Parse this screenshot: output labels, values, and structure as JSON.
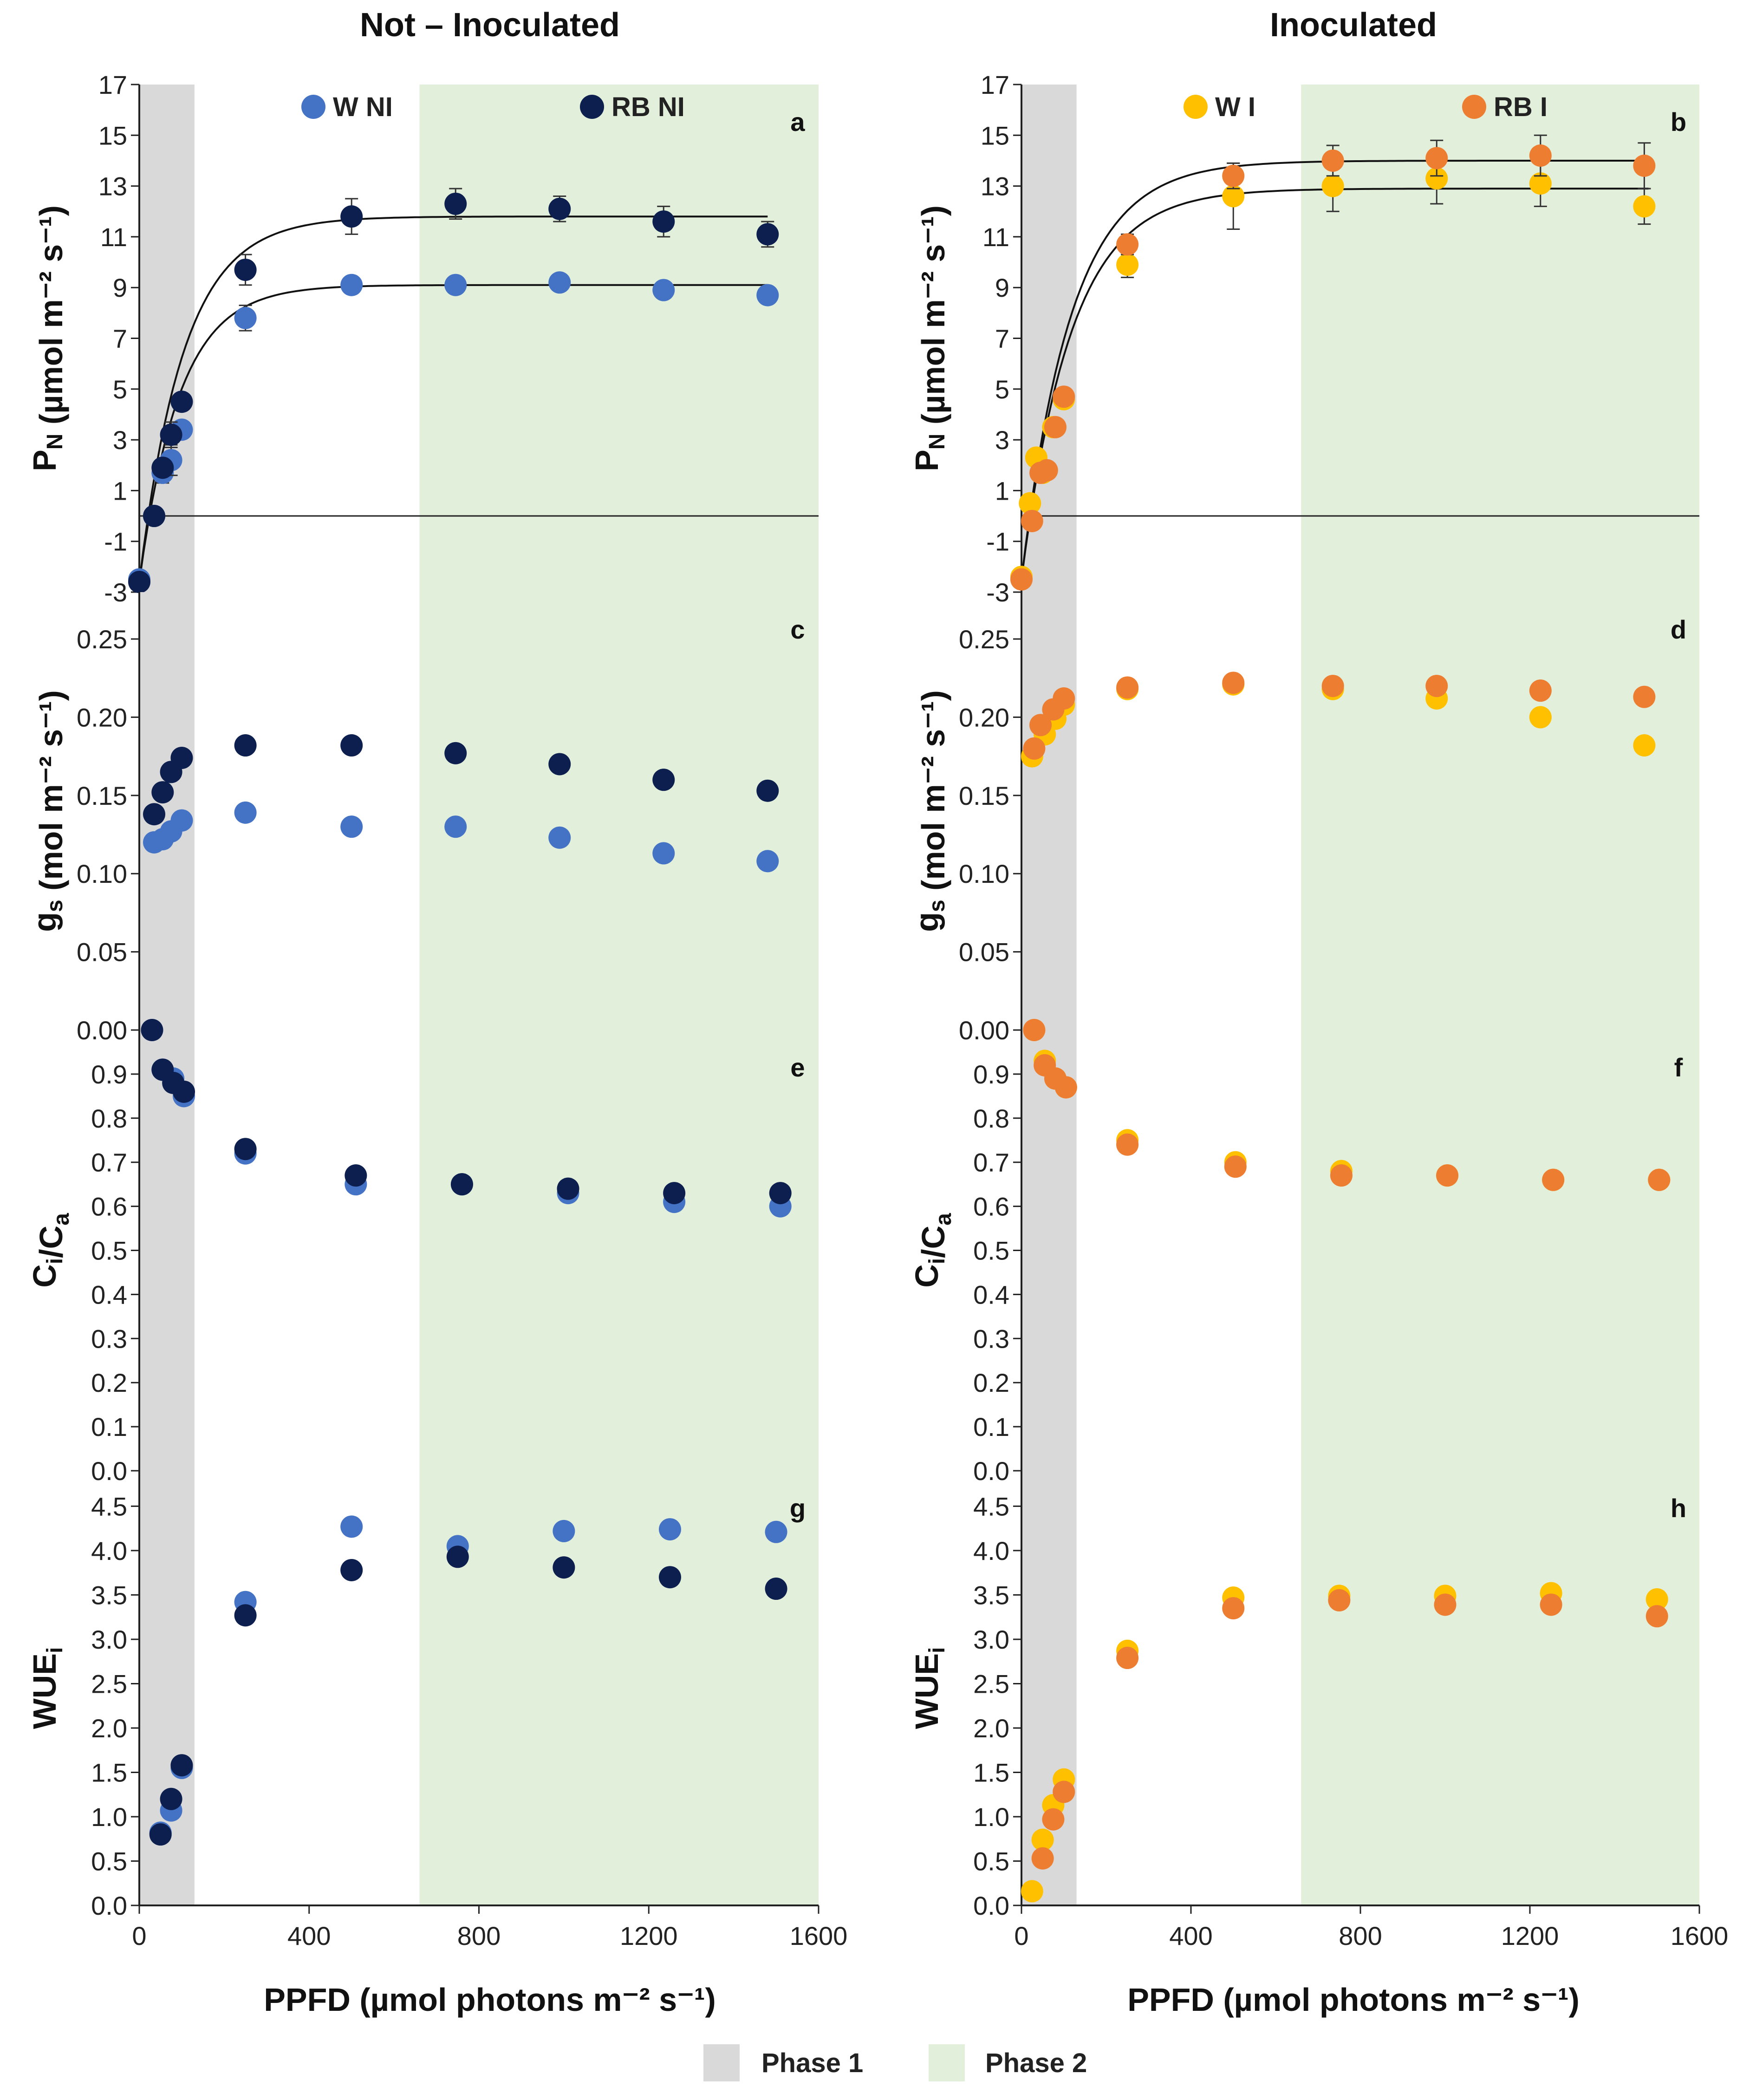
{
  "figure": {
    "column_titles": [
      "Not – Inoculated",
      "Inoculated"
    ],
    "x_axis_title": "PPFD (µmol photons m⁻² s⁻¹)",
    "x_ticks": [
      "0",
      "400",
      "800",
      "1200",
      "1600"
    ],
    "phase_legend": [
      {
        "label": "Phase 1",
        "color": "#d9d9d9"
      },
      {
        "label": "Phase 2",
        "color": "#e2efda"
      }
    ]
  },
  "chart_data": [
    {
      "type": "scatter",
      "panel": "a",
      "column": 0,
      "row": 0,
      "ylabel": "Pₙ (µmol m⁻² s⁻¹)",
      "ylim": [
        -3,
        17
      ],
      "yticks": [
        "-3",
        "-1",
        "1",
        "3",
        "5",
        "7",
        "9",
        "11",
        "13",
        "15",
        "17"
      ],
      "xlim": [
        0,
        1600
      ],
      "phase1": [
        0,
        130
      ],
      "phase2": [
        660,
        1600
      ],
      "legend": true,
      "series": [
        {
          "name": "W NI",
          "color": "#4472c4",
          "x": [
            0,
            35,
            55,
            75,
            100,
            250,
            500,
            745,
            990,
            1235,
            1480
          ],
          "y": [
            -2.5,
            0.0,
            1.7,
            2.2,
            3.4,
            7.8,
            9.1,
            9.1,
            9.2,
            8.9,
            8.7
          ],
          "err": [
            0.2,
            0.2,
            0.4,
            0.6,
            0.3,
            0.5,
            0.3,
            0.3,
            0.3,
            0.3,
            0.3
          ],
          "curve": {
            "amax": 9.1,
            "rd": -2.6,
            "k": 0.0105
          }
        },
        {
          "name": "RB NI",
          "color": "#0d1f4f",
          "x": [
            0,
            35,
            55,
            75,
            100,
            250,
            500,
            745,
            990,
            1235,
            1480
          ],
          "y": [
            -2.6,
            0.0,
            1.9,
            3.2,
            4.5,
            9.7,
            11.8,
            12.3,
            12.1,
            11.6,
            11.1
          ],
          "err": [
            0.2,
            0.2,
            0.3,
            0.5,
            0.3,
            0.6,
            0.7,
            0.6,
            0.5,
            0.6,
            0.5
          ],
          "curve": {
            "amax": 11.8,
            "rd": -2.6,
            "k": 0.0095
          }
        }
      ]
    },
    {
      "type": "scatter",
      "panel": "b",
      "column": 1,
      "row": 0,
      "ylabel": "Pₙ (µmol m⁻² s⁻¹)",
      "ylim": [
        -3,
        17
      ],
      "yticks": [
        "-3",
        "-1",
        "1",
        "3",
        "5",
        "7",
        "9",
        "11",
        "13",
        "15",
        "17"
      ],
      "xlim": [
        0,
        1600
      ],
      "phase1": [
        0,
        130
      ],
      "phase2": [
        660,
        1600
      ],
      "legend": true,
      "series": [
        {
          "name": "W I",
          "color": "#ffc000",
          "x": [
            0,
            20,
            35,
            50,
            75,
            100,
            250,
            500,
            735,
            980,
            1225,
            1470
          ],
          "y": [
            -2.4,
            0.5,
            2.3,
            1.7,
            3.5,
            4.6,
            9.9,
            12.6,
            13.0,
            13.3,
            13.1,
            12.2
          ],
          "err": [
            0.2,
            0.3,
            0.3,
            0.3,
            0.3,
            0.3,
            0.5,
            1.3,
            1.0,
            1.0,
            0.9,
            0.7
          ],
          "curve": {
            "amax": 12.9,
            "rd": -2.5,
            "k": 0.0085
          }
        },
        {
          "name": "RB I",
          "color": "#ed7d31",
          "x": [
            0,
            25,
            45,
            60,
            80,
            100,
            250,
            500,
            735,
            980,
            1225,
            1470
          ],
          "y": [
            -2.5,
            -0.2,
            1.7,
            1.8,
            3.5,
            4.7,
            10.7,
            13.4,
            14.0,
            14.1,
            14.2,
            13.8
          ],
          "err": [
            0.2,
            0.2,
            0.3,
            0.3,
            0.3,
            0.3,
            0.4,
            0.5,
            0.6,
            0.7,
            0.8,
            0.9
          ],
          "curve": {
            "amax": 14.0,
            "rd": -2.5,
            "k": 0.0085
          }
        }
      ]
    },
    {
      "type": "scatter",
      "panel": "c",
      "column": 0,
      "row": 1,
      "ylabel": "gₛ (mol m⁻² s⁻¹)",
      "ylim": [
        0,
        0.28
      ],
      "yticks": [
        "0.00",
        "0.05",
        "0.10",
        "0.15",
        "0.20",
        "0.25"
      ],
      "ytickvals": [
        0,
        0.05,
        0.1,
        0.15,
        0.2,
        0.25
      ],
      "xlim": [
        0,
        1600
      ],
      "phase1": [
        0,
        130
      ],
      "phase2": [
        660,
        1600
      ],
      "series": [
        {
          "name": "W NI",
          "color": "#4472c4",
          "x": [
            35,
            55,
            75,
            100,
            250,
            500,
            745,
            990,
            1235,
            1480
          ],
          "y": [
            0.12,
            0.122,
            0.127,
            0.134,
            0.139,
            0.13,
            0.13,
            0.123,
            0.113,
            0.108
          ]
        },
        {
          "name": "RB NI",
          "color": "#0d1f4f",
          "x": [
            35,
            55,
            75,
            100,
            250,
            500,
            745,
            990,
            1235,
            1480
          ],
          "y": [
            0.138,
            0.152,
            0.165,
            0.174,
            0.182,
            0.182,
            0.177,
            0.17,
            0.16,
            0.153
          ]
        }
      ]
    },
    {
      "type": "scatter",
      "panel": "d",
      "column": 1,
      "row": 1,
      "ylabel": "gₛ (mol m⁻² s⁻¹)",
      "ylim": [
        0,
        0.28
      ],
      "yticks": [
        "0.00",
        "0.05",
        "0.10",
        "0.15",
        "0.20",
        "0.25"
      ],
      "ytickvals": [
        0,
        0.05,
        0.1,
        0.15,
        0.2,
        0.25
      ],
      "xlim": [
        0,
        1600
      ],
      "phase1": [
        0,
        130
      ],
      "phase2": [
        660,
        1600
      ],
      "series": [
        {
          "name": "W I",
          "color": "#ffc000",
          "x": [
            25,
            55,
            80,
            100,
            250,
            500,
            735,
            980,
            1225,
            1470
          ],
          "y": [
            0.175,
            0.189,
            0.199,
            0.208,
            0.218,
            0.221,
            0.218,
            0.212,
            0.2,
            0.182
          ]
        },
        {
          "name": "RB I",
          "color": "#ed7d31",
          "x": [
            30,
            45,
            75,
            100,
            250,
            500,
            735,
            980,
            1225,
            1470
          ],
          "y": [
            0.18,
            0.195,
            0.205,
            0.212,
            0.219,
            0.222,
            0.22,
            0.22,
            0.217,
            0.213
          ]
        }
      ]
    },
    {
      "type": "scatter",
      "panel": "e",
      "column": 0,
      "row": 2,
      "ylabel": "Cᵢ/Cₐ",
      "ylim": [
        0,
        1.0
      ],
      "yticks": [
        "0.0",
        "0.1",
        "0.2",
        "0.3",
        "0.4",
        "0.5",
        "0.6",
        "0.7",
        "0.8",
        "0.9"
      ],
      "ytickvals": [
        0,
        0.1,
        0.2,
        0.3,
        0.4,
        0.5,
        0.6,
        0.7,
        0.8,
        0.9
      ],
      "xlim": [
        0,
        1600
      ],
      "phase1": [
        0,
        130
      ],
      "phase2": [
        660,
        1600
      ],
      "series": [
        {
          "name": "W NI",
          "color": "#4472c4",
          "x": [
            30,
            55,
            80,
            105,
            250,
            510,
            760,
            1010,
            1260,
            1510
          ],
          "y": [
            1.0,
            0.91,
            0.89,
            0.85,
            0.72,
            0.65,
            0.65,
            0.63,
            0.61,
            0.6
          ]
        },
        {
          "name": "RB NI",
          "color": "#0d1f4f",
          "x": [
            30,
            55,
            80,
            105,
            250,
            510,
            760,
            1010,
            1260,
            1510
          ],
          "y": [
            1.0,
            0.91,
            0.88,
            0.86,
            0.73,
            0.67,
            0.65,
            0.64,
            0.63,
            0.63
          ]
        }
      ]
    },
    {
      "type": "scatter",
      "panel": "f",
      "column": 1,
      "row": 2,
      "ylabel": "Cᵢ/Cₐ",
      "ylim": [
        0,
        1.0
      ],
      "yticks": [
        "0.0",
        "0.1",
        "0.2",
        "0.3",
        "0.4",
        "0.5",
        "0.6",
        "0.7",
        "0.8",
        "0.9"
      ],
      "ytickvals": [
        0,
        0.1,
        0.2,
        0.3,
        0.4,
        0.5,
        0.6,
        0.7,
        0.8,
        0.9
      ],
      "xlim": [
        0,
        1600
      ],
      "phase1": [
        0,
        130
      ],
      "phase2": [
        660,
        1600
      ],
      "series": [
        {
          "name": "W I",
          "color": "#ffc000",
          "x": [
            30,
            55,
            80,
            105,
            250,
            505,
            755,
            1005,
            1255,
            1505
          ],
          "y": [
            1.0,
            0.93,
            0.89,
            0.87,
            0.75,
            0.7,
            0.68,
            0.67,
            0.66,
            0.66
          ]
        },
        {
          "name": "RB I",
          "color": "#ed7d31",
          "x": [
            30,
            55,
            80,
            105,
            250,
            505,
            755,
            1005,
            1255,
            1505
          ],
          "y": [
            1.0,
            0.92,
            0.89,
            0.87,
            0.74,
            0.69,
            0.67,
            0.67,
            0.66,
            0.66
          ]
        }
      ]
    },
    {
      "type": "scatter",
      "panel": "g",
      "column": 0,
      "row": 3,
      "ylabel": "WUEᵢ",
      "ylim": [
        0,
        4.9
      ],
      "yticks": [
        "0.0",
        "0.5",
        "1.0",
        "1.5",
        "2.0",
        "2.5",
        "3.0",
        "3.5",
        "4.0",
        "4.5"
      ],
      "ytickvals": [
        0,
        0.5,
        1.0,
        1.5,
        2.0,
        2.5,
        3.0,
        3.5,
        4.0,
        4.5
      ],
      "xlim": [
        0,
        1600
      ],
      "phase1": [
        0,
        130
      ],
      "phase2": [
        660,
        1600
      ],
      "series": [
        {
          "name": "W NI",
          "color": "#4472c4",
          "x": [
            50,
            75,
            100,
            250,
            500,
            750,
            1000,
            1250,
            1500
          ],
          "y": [
            0.82,
            1.07,
            1.55,
            3.42,
            4.27,
            4.05,
            4.22,
            4.24,
            4.21
          ]
        },
        {
          "name": "RB NI",
          "color": "#0d1f4f",
          "x": [
            50,
            75,
            100,
            250,
            500,
            750,
            1000,
            1250,
            1500
          ],
          "y": [
            0.8,
            1.2,
            1.58,
            3.27,
            3.78,
            3.93,
            3.81,
            3.7,
            3.57
          ]
        }
      ]
    },
    {
      "type": "scatter",
      "panel": "h",
      "column": 1,
      "row": 3,
      "ylabel": "WUEᵢ",
      "ylim": [
        0,
        4.9
      ],
      "yticks": [
        "0.0",
        "0.5",
        "1.0",
        "1.5",
        "2.0",
        "2.5",
        "3.0",
        "3.5",
        "4.0",
        "4.5"
      ],
      "ytickvals": [
        0,
        0.5,
        1.0,
        1.5,
        2.0,
        2.5,
        3.0,
        3.5,
        4.0,
        4.5
      ],
      "xlim": [
        0,
        1600
      ],
      "phase1": [
        0,
        130
      ],
      "phase2": [
        660,
        1600
      ],
      "series": [
        {
          "name": "W I",
          "color": "#ffc000",
          "x": [
            25,
            50,
            75,
            100,
            250,
            500,
            750,
            1000,
            1250,
            1500
          ],
          "y": [
            0.16,
            0.74,
            1.13,
            1.42,
            2.87,
            3.47,
            3.49,
            3.49,
            3.52,
            3.45
          ]
        },
        {
          "name": "RB I",
          "color": "#ed7d31",
          "x": [
            50,
            75,
            100,
            250,
            500,
            750,
            1000,
            1250,
            1500
          ],
          "y": [
            0.53,
            0.97,
            1.28,
            2.79,
            3.35,
            3.44,
            3.39,
            3.39,
            3.26
          ]
        }
      ]
    }
  ]
}
